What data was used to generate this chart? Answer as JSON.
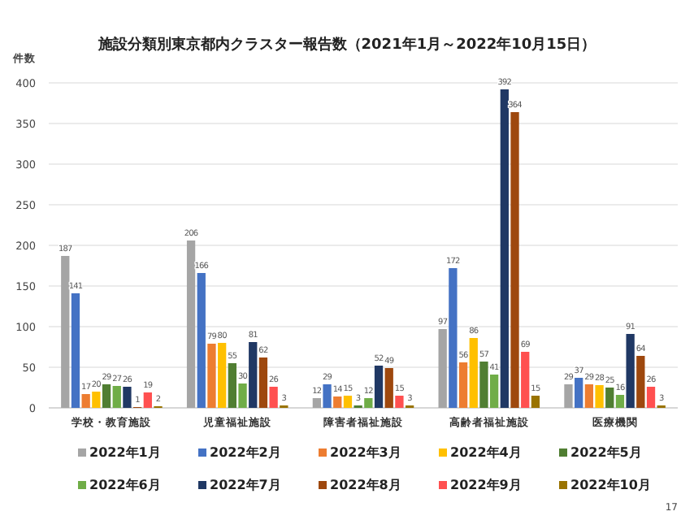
{
  "chart_data": {
    "type": "bar",
    "title": "施設分類別東京都内クラスター報告数（2021年1月～2022年10月15日）",
    "ylabel": "件数",
    "categories": [
      "学校・教育施設",
      "児童福祉施設",
      "障害者福祉施設",
      "高齢者福祉施設",
      "医療機関"
    ],
    "series": [
      {
        "name": "2022年1月",
        "color": "#a5a5a5",
        "values": [
          187,
          206,
          12,
          97,
          29
        ]
      },
      {
        "name": "2022年2月",
        "color": "#4472c4",
        "values": [
          141,
          166,
          29,
          172,
          37
        ]
      },
      {
        "name": "2022年3月",
        "color": "#ed7d31",
        "values": [
          17,
          79,
          14,
          56,
          29
        ]
      },
      {
        "name": "2022年4月",
        "color": "#ffc000",
        "values": [
          20,
          80,
          15,
          86,
          28
        ]
      },
      {
        "name": "2022年5月",
        "color": "#507e32",
        "values": [
          29,
          55,
          3,
          57,
          25
        ]
      },
      {
        "name": "2022年6月",
        "color": "#70ad47",
        "values": [
          27,
          30,
          12,
          41,
          16
        ]
      },
      {
        "name": "2022年7月",
        "color": "#203864",
        "values": [
          26,
          81,
          52,
          392,
          91
        ]
      },
      {
        "name": "2022年8月",
        "color": "#9e480e",
        "values": [
          1,
          62,
          49,
          364,
          64
        ]
      },
      {
        "name": "2022年9月",
        "color": "#ff5050",
        "values": [
          19,
          26,
          15,
          69,
          26
        ]
      },
      {
        "name": "2022年10月",
        "color": "#997300",
        "values": [
          2,
          3,
          3,
          15,
          3
        ]
      }
    ],
    "ylim": [
      0,
      400
    ],
    "yticks": [
      0,
      50,
      100,
      150,
      200,
      250,
      300,
      350,
      400
    ],
    "grid": "y",
    "legend": "bottom",
    "data_labels": true,
    "annotations": [
      "17"
    ]
  }
}
